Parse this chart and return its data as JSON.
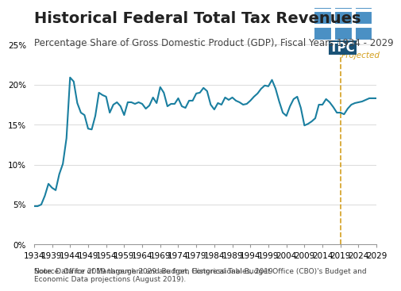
{
  "title": "Historical Federal Total Tax Revenues",
  "subtitle": "Percentage Share of Gross Domestic Product (GDP), Fiscal Years 1934 - 2029",
  "source_text": "Source: Office of Management and Budget, Historical Tables, 2019.",
  "note_text": "Note: Data for 2019 through 2029 are from Congressional Budget Office (CBO)'s Budget and Economic Data projections (August 2019).",
  "projected_label": "Projected",
  "projected_year": 2019,
  "line_color": "#1a7fa0",
  "projected_line_color": "#d4a020",
  "projected_label_color": "#d4a020",
  "background_color": "#ffffff",
  "years": [
    1934,
    1935,
    1936,
    1937,
    1938,
    1939,
    1940,
    1941,
    1942,
    1943,
    1944,
    1945,
    1946,
    1947,
    1948,
    1949,
    1950,
    1951,
    1952,
    1953,
    1954,
    1955,
    1956,
    1957,
    1958,
    1959,
    1960,
    1961,
    1962,
    1963,
    1964,
    1965,
    1966,
    1967,
    1968,
    1969,
    1970,
    1971,
    1972,
    1973,
    1974,
    1975,
    1976,
    1977,
    1978,
    1979,
    1980,
    1981,
    1982,
    1983,
    1984,
    1985,
    1986,
    1987,
    1988,
    1989,
    1990,
    1991,
    1992,
    1993,
    1994,
    1995,
    1996,
    1997,
    1998,
    1999,
    2000,
    2001,
    2002,
    2003,
    2004,
    2005,
    2006,
    2007,
    2008,
    2009,
    2010,
    2011,
    2012,
    2013,
    2014,
    2015,
    2016,
    2017,
    2018,
    2019,
    2020,
    2021,
    2022,
    2023,
    2024,
    2025,
    2026,
    2027,
    2028,
    2029
  ],
  "values": [
    4.8,
    4.8,
    5.0,
    6.1,
    7.6,
    7.1,
    6.8,
    8.8,
    10.1,
    13.3,
    20.9,
    20.4,
    17.7,
    16.5,
    16.2,
    14.5,
    14.4,
    16.1,
    19.0,
    18.7,
    18.5,
    16.5,
    17.5,
    17.8,
    17.3,
    16.2,
    17.8,
    17.8,
    17.6,
    17.8,
    17.6,
    17.0,
    17.4,
    18.4,
    17.7,
    19.7,
    19.0,
    17.3,
    17.6,
    17.6,
    18.3,
    17.3,
    17.1,
    18.0,
    18.0,
    18.9,
    19.0,
    19.6,
    19.2,
    17.5,
    16.9,
    17.7,
    17.5,
    18.4,
    18.1,
    18.4,
    18.0,
    17.8,
    17.5,
    17.6,
    18.0,
    18.5,
    18.9,
    19.5,
    19.9,
    19.8,
    20.6,
    19.5,
    17.9,
    16.5,
    16.1,
    17.3,
    18.2,
    18.5,
    17.1,
    14.9,
    15.1,
    15.4,
    15.8,
    17.5,
    17.5,
    18.2,
    17.8,
    17.2,
    16.5,
    16.5,
    16.3,
    17.0,
    17.5,
    17.7,
    17.8,
    17.9,
    18.1,
    18.3,
    18.3,
    18.3
  ],
  "xlim": [
    1934,
    2029
  ],
  "ylim": [
    0,
    25
  ],
  "yticks": [
    0,
    5,
    10,
    15,
    20,
    25
  ],
  "xticks": [
    1934,
    1939,
    1944,
    1949,
    1954,
    1959,
    1964,
    1969,
    1974,
    1979,
    1984,
    1989,
    1994,
    1999,
    2004,
    2009,
    2014,
    2019,
    2024,
    2029
  ],
  "title_fontsize": 14,
  "subtitle_fontsize": 8.5,
  "tick_fontsize": 7.5,
  "source_fontsize": 6.5
}
